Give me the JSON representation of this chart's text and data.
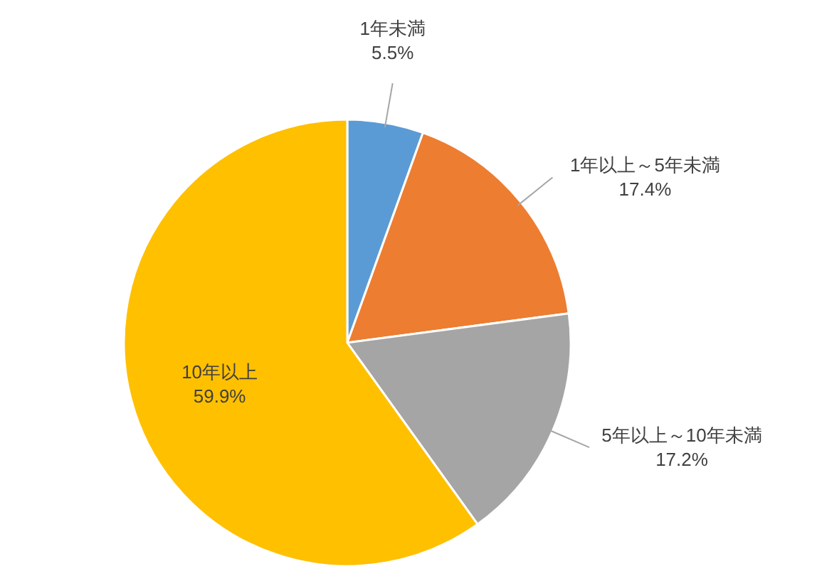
{
  "chart_data": {
    "type": "pie",
    "categories": [
      "1年未満",
      "1年以上～5年未満",
      "5年以上～10年未満",
      "10年以上"
    ],
    "values": [
      5.5,
      17.4,
      17.2,
      59.9
    ],
    "colors": [
      "#5b9bd5",
      "#ed7d31",
      "#a5a5a5",
      "#ffc000"
    ],
    "value_labels": [
      "5.5%",
      "17.4%",
      "17.2%",
      "59.9%"
    ]
  }
}
